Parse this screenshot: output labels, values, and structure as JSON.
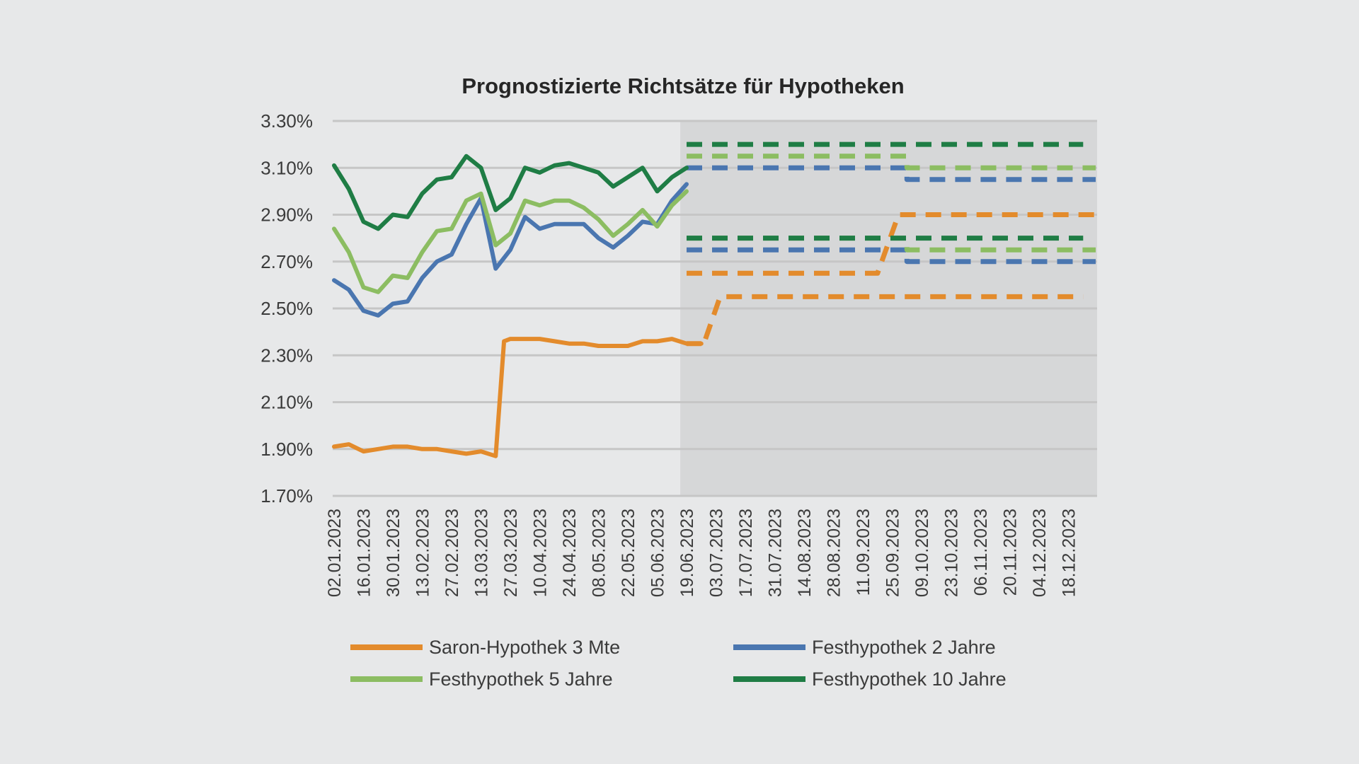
{
  "chart_data": {
    "type": "line",
    "title": "Prognostizierte Richtsätze für Hypotheken",
    "xlabel": "",
    "ylabel": "",
    "ylim": [
      1.7,
      3.3
    ],
    "y_ticks": [
      "3.30%",
      "3.10%",
      "2.90%",
      "2.70%",
      "2.50%",
      "2.30%",
      "2.10%",
      "1.90%",
      "1.70%"
    ],
    "x_ticks": [
      "02.01.2023",
      "16.01.2023",
      "30.01.2023",
      "13.02.2023",
      "27.02.2023",
      "13.03.2023",
      "27.03.2023",
      "10.04.2023",
      "24.04.2023",
      "08.05.2023",
      "22.05.2023",
      "05.06.2023",
      "19.06.2023",
      "03.07.2023",
      "17.07.2023",
      "31.07.2023",
      "14.08.2023",
      "28.08.2023",
      "11.09.2023",
      "25.09.2023",
      "09.10.2023",
      "23.10.2023",
      "06.11.2023",
      "20.11.2023",
      "04.12.2023",
      "18.12.2023"
    ],
    "x_range": [
      "02.01.2023",
      "31.12.2023"
    ],
    "forecast_region": [
      "16.06.2023",
      "31.12.2023"
    ],
    "grid": true,
    "legend_position": "bottom",
    "series": [
      {
        "name": "Saron-Hypothek 3 Mte",
        "color": "#e38b2c",
        "values": [
          [
            "02.01.2023",
            1.91
          ],
          [
            "09.01.2023",
            1.92
          ],
          [
            "16.01.2023",
            1.89
          ],
          [
            "23.01.2023",
            1.9
          ],
          [
            "30.01.2023",
            1.91
          ],
          [
            "06.02.2023",
            1.91
          ],
          [
            "13.02.2023",
            1.9
          ],
          [
            "20.02.2023",
            1.9
          ],
          [
            "27.02.2023",
            1.89
          ],
          [
            "06.03.2023",
            1.88
          ],
          [
            "13.03.2023",
            1.89
          ],
          [
            "20.03.2023",
            1.87
          ],
          [
            "24.03.2023",
            2.36
          ],
          [
            "27.03.2023",
            2.37
          ],
          [
            "03.04.2023",
            2.37
          ],
          [
            "10.04.2023",
            2.37
          ],
          [
            "17.04.2023",
            2.36
          ],
          [
            "24.04.2023",
            2.35
          ],
          [
            "01.05.2023",
            2.35
          ],
          [
            "08.05.2023",
            2.34
          ],
          [
            "15.05.2023",
            2.34
          ],
          [
            "22.05.2023",
            2.34
          ],
          [
            "29.05.2023",
            2.36
          ],
          [
            "05.06.2023",
            2.36
          ],
          [
            "12.06.2023",
            2.37
          ],
          [
            "19.06.2023",
            2.35
          ],
          [
            "26.06.2023",
            2.35
          ]
        ]
      },
      {
        "name": "Festhypothek 2 Jahre",
        "color": "#4a76b0",
        "values": [
          [
            "02.01.2023",
            2.62
          ],
          [
            "09.01.2023",
            2.58
          ],
          [
            "16.01.2023",
            2.49
          ],
          [
            "23.01.2023",
            2.47
          ],
          [
            "30.01.2023",
            2.52
          ],
          [
            "06.02.2023",
            2.53
          ],
          [
            "13.02.2023",
            2.63
          ],
          [
            "20.02.2023",
            2.7
          ],
          [
            "27.02.2023",
            2.73
          ],
          [
            "06.03.2023",
            2.86
          ],
          [
            "13.03.2023",
            2.97
          ],
          [
            "20.03.2023",
            2.67
          ],
          [
            "27.03.2023",
            2.75
          ],
          [
            "03.04.2023",
            2.89
          ],
          [
            "10.04.2023",
            2.84
          ],
          [
            "17.04.2023",
            2.86
          ],
          [
            "24.04.2023",
            2.86
          ],
          [
            "01.05.2023",
            2.86
          ],
          [
            "08.05.2023",
            2.8
          ],
          [
            "15.05.2023",
            2.76
          ],
          [
            "22.05.2023",
            2.81
          ],
          [
            "29.05.2023",
            2.87
          ],
          [
            "05.06.2023",
            2.86
          ],
          [
            "12.06.2023",
            2.96
          ],
          [
            "19.06.2023",
            3.03
          ]
        ]
      },
      {
        "name": "Festhypothek 5 Jahre",
        "color": "#8cbd62",
        "values": [
          [
            "02.01.2023",
            2.84
          ],
          [
            "09.01.2023",
            2.74
          ],
          [
            "16.01.2023",
            2.59
          ],
          [
            "23.01.2023",
            2.57
          ],
          [
            "30.01.2023",
            2.64
          ],
          [
            "06.02.2023",
            2.63
          ],
          [
            "13.02.2023",
            2.74
          ],
          [
            "20.02.2023",
            2.83
          ],
          [
            "27.02.2023",
            2.84
          ],
          [
            "06.03.2023",
            2.96
          ],
          [
            "13.03.2023",
            2.99
          ],
          [
            "20.03.2023",
            2.77
          ],
          [
            "27.03.2023",
            2.82
          ],
          [
            "03.04.2023",
            2.96
          ],
          [
            "10.04.2023",
            2.94
          ],
          [
            "17.04.2023",
            2.96
          ],
          [
            "24.04.2023",
            2.96
          ],
          [
            "01.05.2023",
            2.93
          ],
          [
            "08.05.2023",
            2.88
          ],
          [
            "15.05.2023",
            2.81
          ],
          [
            "22.05.2023",
            2.86
          ],
          [
            "29.05.2023",
            2.92
          ],
          [
            "05.06.2023",
            2.85
          ],
          [
            "12.06.2023",
            2.94
          ],
          [
            "19.06.2023",
            3.0
          ]
        ]
      },
      {
        "name": "Festhypothek 10 Jahre",
        "color": "#1f7d45",
        "values": [
          [
            "02.01.2023",
            3.11
          ],
          [
            "09.01.2023",
            3.01
          ],
          [
            "16.01.2023",
            2.87
          ],
          [
            "23.01.2023",
            2.84
          ],
          [
            "30.01.2023",
            2.9
          ],
          [
            "06.02.2023",
            2.89
          ],
          [
            "13.02.2023",
            2.99
          ],
          [
            "20.02.2023",
            3.05
          ],
          [
            "27.02.2023",
            3.06
          ],
          [
            "06.03.2023",
            3.15
          ],
          [
            "13.03.2023",
            3.1
          ],
          [
            "20.03.2023",
            2.92
          ],
          [
            "27.03.2023",
            2.97
          ],
          [
            "03.04.2023",
            3.1
          ],
          [
            "10.04.2023",
            3.08
          ],
          [
            "17.04.2023",
            3.11
          ],
          [
            "24.04.2023",
            3.12
          ],
          [
            "01.05.2023",
            3.1
          ],
          [
            "08.05.2023",
            3.08
          ],
          [
            "15.05.2023",
            3.02
          ],
          [
            "22.05.2023",
            3.06
          ],
          [
            "29.05.2023",
            3.1
          ],
          [
            "05.06.2023",
            3.0
          ],
          [
            "12.06.2023",
            3.06
          ],
          [
            "19.06.2023",
            3.1
          ]
        ]
      }
    ],
    "forecast_series": [
      {
        "series": "Saron-Hypothek 3 Mte",
        "values": [
          [
            "19.06.2023",
            2.35
          ],
          [
            "26.06.2023",
            2.35
          ]
        ]
      },
      {
        "series": "Saron-Hypothek 3 Mte",
        "values": [
          [
            "28.06.2023",
            2.37
          ],
          [
            "05.07.2023",
            2.55
          ],
          [
            "25.12.2023",
            2.55
          ]
        ]
      },
      {
        "series": "Saron-Hypothek 3 Mte",
        "values": [
          [
            "19.06.2023",
            2.65
          ],
          [
            "18.09.2023",
            2.65
          ],
          [
            "28.09.2023",
            2.9
          ],
          [
            "31.12.2023",
            2.9
          ]
        ]
      },
      {
        "series": "Festhypothek 2 Jahre",
        "values": [
          [
            "19.06.2023",
            3.1
          ],
          [
            "02.10.2023",
            3.1
          ],
          [
            "02.10.2023",
            3.05
          ],
          [
            "31.12.2023",
            3.05
          ]
        ]
      },
      {
        "series": "Festhypothek 2 Jahre",
        "values": [
          [
            "19.06.2023",
            2.75
          ],
          [
            "02.10.2023",
            2.75
          ],
          [
            "02.10.2023",
            2.7
          ],
          [
            "31.12.2023",
            2.7
          ]
        ]
      },
      {
        "series": "Festhypothek 5 Jahre",
        "values": [
          [
            "19.06.2023",
            3.15
          ],
          [
            "02.10.2023",
            3.15
          ],
          [
            "02.10.2023",
            3.1
          ],
          [
            "31.12.2023",
            3.1
          ]
        ]
      },
      {
        "series": "Festhypothek 5 Jahre",
        "values": [
          [
            "19.06.2023",
            2.8
          ],
          [
            "02.10.2023",
            2.8
          ],
          [
            "02.10.2023",
            2.75
          ],
          [
            "31.12.2023",
            2.75
          ]
        ]
      },
      {
        "series": "Festhypothek 10 Jahre",
        "values": [
          [
            "19.06.2023",
            3.2
          ],
          [
            "25.12.2023",
            3.2
          ]
        ]
      },
      {
        "series": "Festhypothek 10 Jahre",
        "values": [
          [
            "19.06.2023",
            2.8
          ],
          [
            "25.12.2023",
            2.8
          ]
        ]
      }
    ],
    "colors": {
      "background": "#e7e8e9",
      "forecast_shading": "#d6d7d8",
      "gridline": "#c6c6c6",
      "text": "#3b3b3b",
      "title": "#262626"
    }
  }
}
